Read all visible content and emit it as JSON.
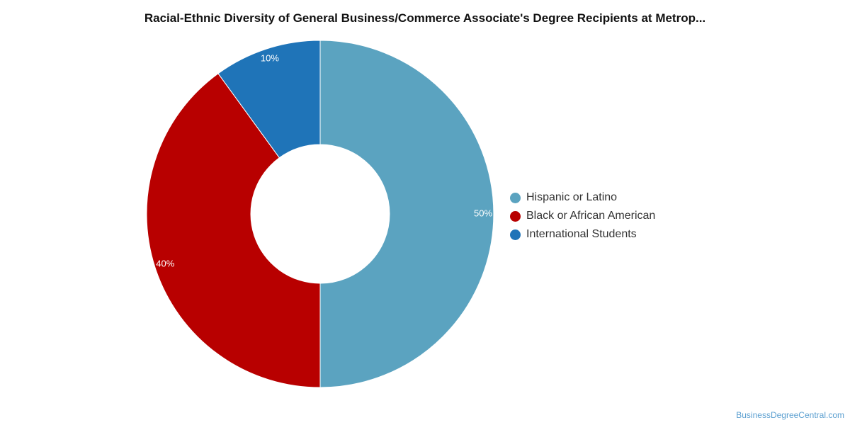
{
  "chart_data": {
    "type": "pie",
    "title": "Racial-Ethnic Diversity of General Business/Commerce Associate's Degree Recipients at Metrop...",
    "donut": true,
    "legend_position": "right",
    "slices": [
      {
        "name": "Hispanic or Latino",
        "value": 50,
        "label": "50%",
        "color": "#5ba3c0"
      },
      {
        "name": "Black or African American",
        "value": 40,
        "label": "40%",
        "color": "#b80000"
      },
      {
        "name": "International Students",
        "value": 10,
        "label": "10%",
        "color": "#1f74b8"
      }
    ]
  },
  "source": "BusinessDegreeCentral.com"
}
